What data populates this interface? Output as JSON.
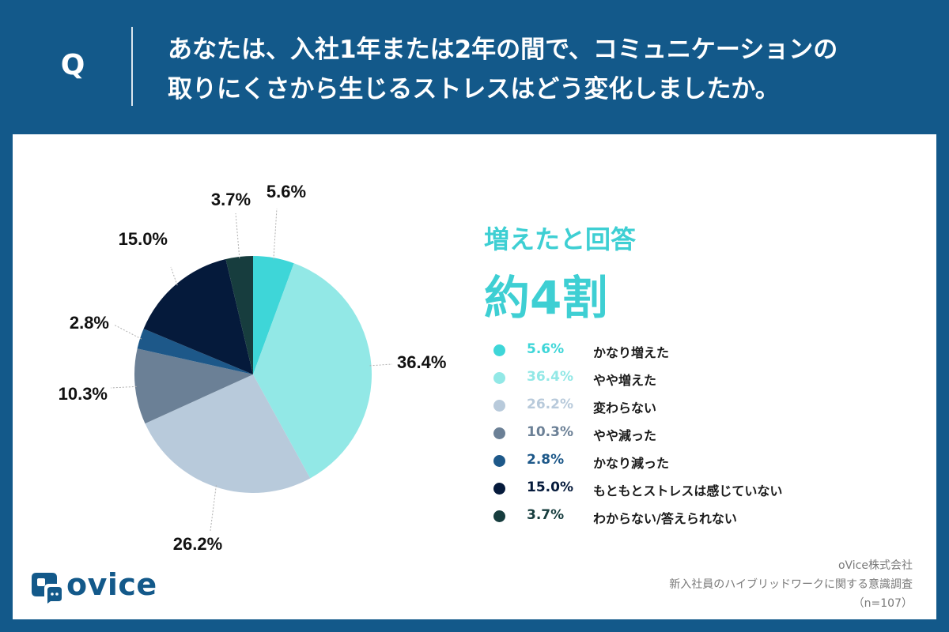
{
  "question": {
    "mark": "Q",
    "line1": "あなたは、入社1年または2年の間で、コミュニケーションの",
    "line2": "取りにくさから生じるストレスはどう変化しましたか。"
  },
  "headline": {
    "sub": "増えたと回答",
    "main": "約4割",
    "color": "#3ecfd3"
  },
  "chart_data": {
    "type": "pie",
    "title": "",
    "slices": [
      {
        "label": "かなり増えた",
        "value": 5.6,
        "display": "5.6%",
        "color": "#3ed6d8"
      },
      {
        "label": "やや増えた",
        "value": 36.4,
        "display": "36.4%",
        "color": "#92e8e6"
      },
      {
        "label": "変わらない",
        "value": 26.2,
        "display": "26.2%",
        "color": "#b8cadb"
      },
      {
        "label": "やや減った",
        "value": 10.3,
        "display": "10.3%",
        "color": "#6b8096"
      },
      {
        "label": "かなり減った",
        "value": 2.8,
        "display": "2.8%",
        "color": "#1d5889"
      },
      {
        "label": "もともとストレスは感じていない",
        "value": 15.0,
        "display": "15.0%",
        "color": "#051a3b"
      },
      {
        "label": "わからない/答えられない",
        "value": 3.7,
        "display": "3.7%",
        "color": "#173d3e"
      }
    ],
    "legend_position": "right"
  },
  "branding": {
    "logo_text": "ovice"
  },
  "source": {
    "company": "oVice株式会社",
    "survey": "新入社員のハイブリッドワークに関する意識調査",
    "sample": "（n=107）"
  }
}
